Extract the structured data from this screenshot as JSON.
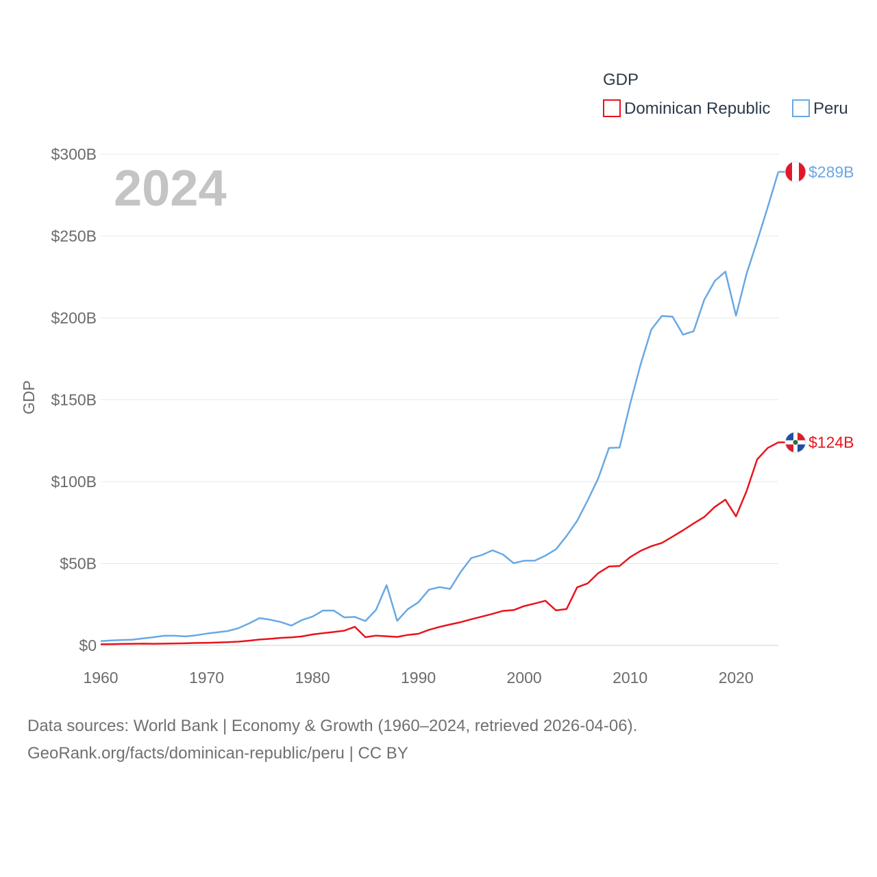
{
  "chart_data": {
    "type": "line",
    "ylabel": "GDP",
    "xlabel": "",
    "year_stamp": "2024",
    "ylim": [
      0,
      300
    ],
    "xlim": [
      1960,
      2024
    ],
    "y_ticks": [
      0,
      50,
      100,
      150,
      200,
      250,
      300
    ],
    "y_tick_labels": [
      "$0",
      "$50B",
      "$100B",
      "$150B",
      "$200B",
      "$250B",
      "$300B"
    ],
    "x_ticks": [
      1960,
      1970,
      1980,
      1990,
      2000,
      2010,
      2020
    ],
    "x_tick_labels": [
      "1960",
      "1970",
      "1980",
      "1990",
      "2000",
      "2010",
      "2020"
    ],
    "grid": true,
    "legend": {
      "title": "GDP",
      "position": "top-right",
      "entries": [
        "Dominican Republic",
        "Peru"
      ]
    },
    "x": [
      1960,
      1961,
      1962,
      1963,
      1964,
      1965,
      1966,
      1967,
      1968,
      1969,
      1970,
      1971,
      1972,
      1973,
      1974,
      1975,
      1976,
      1977,
      1978,
      1979,
      1980,
      1981,
      1982,
      1983,
      1984,
      1985,
      1986,
      1987,
      1988,
      1989,
      1990,
      1991,
      1992,
      1993,
      1994,
      1995,
      1996,
      1997,
      1998,
      1999,
      2000,
      2001,
      2002,
      2003,
      2004,
      2005,
      2006,
      2007,
      2008,
      2009,
      2010,
      2011,
      2012,
      2013,
      2014,
      2015,
      2016,
      2017,
      2018,
      2019,
      2020,
      2021,
      2022,
      2023,
      2024
    ],
    "series": [
      {
        "name": "Dominican Republic",
        "color": "#e8141c",
        "end_label": "$124B",
        "flag": "dominican-republic-flag-icon",
        "values": [
          0.7,
          0.8,
          0.9,
          1.0,
          1.1,
          1.0,
          1.1,
          1.2,
          1.3,
          1.5,
          1.6,
          1.8,
          2.0,
          2.3,
          2.9,
          3.6,
          4.0,
          4.6,
          4.9,
          5.5,
          6.7,
          7.5,
          8.2,
          9.0,
          11.4,
          5.0,
          6.0,
          5.6,
          5.2,
          6.4,
          7.1,
          9.5,
          11.3,
          12.8,
          14.2,
          16.0,
          17.6,
          19.3,
          21.1,
          21.6,
          24.0,
          25.6,
          27.3,
          21.4,
          22.2,
          35.5,
          37.9,
          44.2,
          48.2,
          48.5,
          53.9,
          57.8,
          60.6,
          62.6,
          66.4,
          70.3,
          74.5,
          78.4,
          84.6,
          89.0,
          78.8,
          94.2,
          113.6,
          120.6,
          124.0
        ]
      },
      {
        "name": "Peru",
        "color": "#69a8e4",
        "end_label": "$289B",
        "flag": "peru-flag-icon",
        "values": [
          2.6,
          3.0,
          3.3,
          3.5,
          4.3,
          5.0,
          5.9,
          5.9,
          5.5,
          6.2,
          7.2,
          8.0,
          8.8,
          10.5,
          13.4,
          16.7,
          15.7,
          14.3,
          12.1,
          15.5,
          17.6,
          21.3,
          21.3,
          17.1,
          17.4,
          14.9,
          21.7,
          36.8,
          15.0,
          22.1,
          26.3,
          34.0,
          35.6,
          34.5,
          44.9,
          53.4,
          55.2,
          58.1,
          55.5,
          50.2,
          51.7,
          51.8,
          54.8,
          58.7,
          66.8,
          76.1,
          88.6,
          102.2,
          120.6,
          120.8,
          147.5,
          171.8,
          192.9,
          201.2,
          200.8,
          189.8,
          191.9,
          211.0,
          222.6,
          228.3,
          201.4,
          226.9,
          246.9,
          267.6,
          289.2
        ]
      }
    ]
  },
  "footer": {
    "line1": "Data sources: World Bank | Economy & Growth (1960–2024, retrieved 2026-04-06).",
    "line2": "GeoRank.org/facts/dominican-republic/peru | CC BY"
  }
}
